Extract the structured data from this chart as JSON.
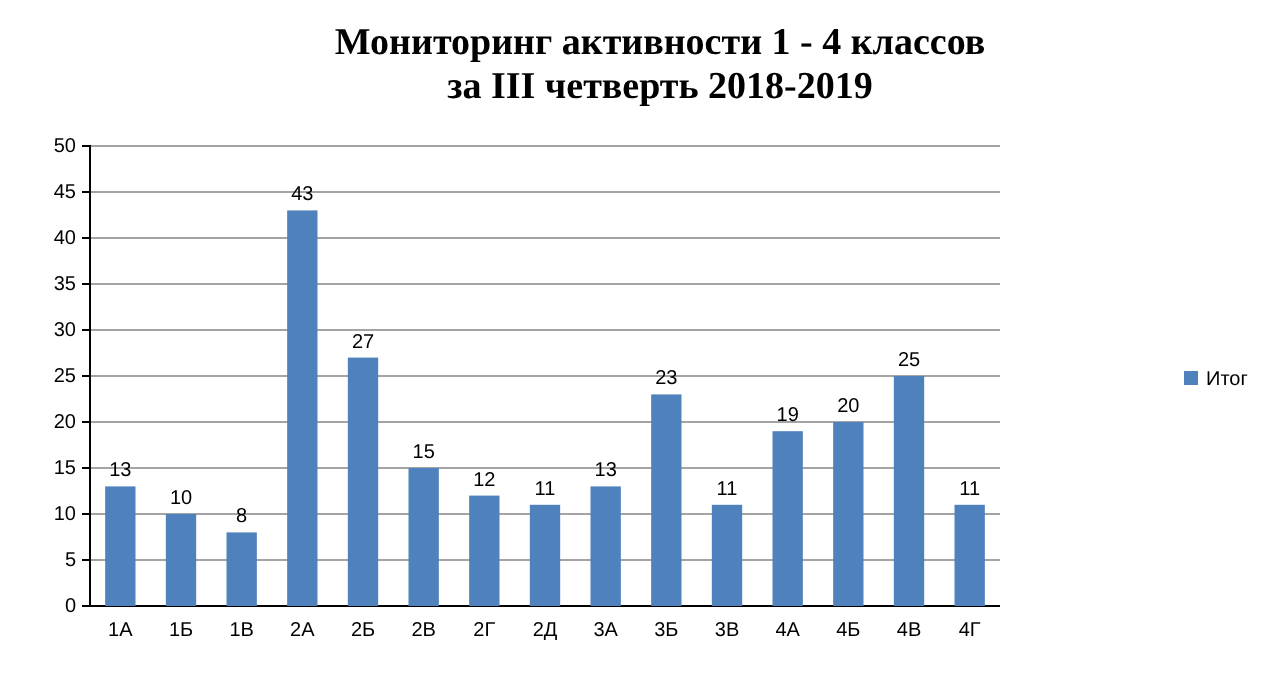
{
  "chart_data": {
    "type": "bar",
    "title": "Мониторинг активности 1 - 4 классов\nза III четверть 2018-2019",
    "categories": [
      "1А",
      "1Б",
      "1В",
      "2А",
      "2Б",
      "2В",
      "2Г",
      "2Д",
      "3А",
      "3Б",
      "3В",
      "4А",
      "4Б",
      "4В",
      "4Г"
    ],
    "series": [
      {
        "name": "Итог",
        "color": "#4f81bd",
        "values": [
          13,
          10,
          8,
          43,
          27,
          15,
          12,
          11,
          13,
          23,
          11,
          19,
          20,
          25,
          11
        ]
      }
    ],
    "ylim": [
      0,
      50
    ],
    "yticks": [
      0,
      5,
      10,
      15,
      20,
      25,
      30,
      35,
      40,
      45,
      50
    ],
    "grid": "y",
    "legend": "right",
    "data_labels": true
  }
}
